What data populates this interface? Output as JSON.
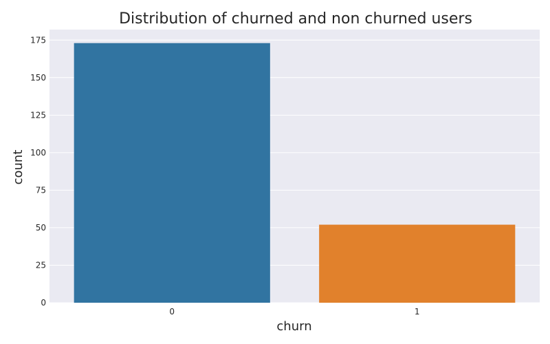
{
  "chart_data": {
    "type": "bar",
    "title": "Distribution of churned and non churned users",
    "xlabel": "churn",
    "ylabel": "count",
    "categories": [
      "0",
      "1"
    ],
    "values": [
      173,
      52
    ],
    "colors": [
      "#3174a1",
      "#e1812c"
    ],
    "ylim": [
      0,
      182
    ],
    "yticks": [
      0,
      25,
      50,
      75,
      100,
      125,
      150,
      175
    ],
    "grid": true,
    "background": "#eaeaf2"
  }
}
